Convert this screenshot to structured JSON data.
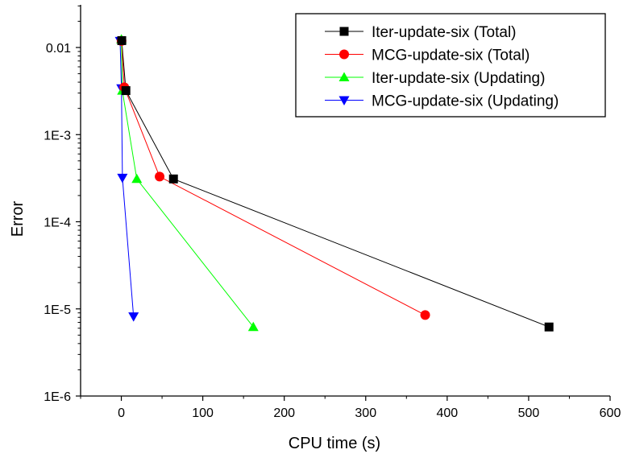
{
  "chart_data": {
    "type": "line",
    "title": "",
    "xlabel": "CPU time (s)",
    "ylabel": "Error",
    "xlim": [
      -50,
      600
    ],
    "ylim": [
      1e-06,
      0.04
    ],
    "yscale": "log",
    "grid": false,
    "legend_position": "top-right",
    "x_ticks": [
      {
        "value": 0,
        "label": "0"
      },
      {
        "value": 100,
        "label": "100"
      },
      {
        "value": 200,
        "label": "200"
      },
      {
        "value": 300,
        "label": "300"
      },
      {
        "value": 400,
        "label": "400"
      },
      {
        "value": 500,
        "label": "500"
      },
      {
        "value": 600,
        "label": "600"
      }
    ],
    "y_ticks": [
      {
        "value": 0.01,
        "label": "0.01"
      },
      {
        "value": 0.001,
        "label": "1E-3"
      },
      {
        "value": 0.0001,
        "label": "1E-4"
      },
      {
        "value": 1e-05,
        "label": "1E-5"
      },
      {
        "value": 1e-06,
        "label": "1E-6"
      }
    ],
    "series": [
      {
        "name": "Iter-update-six (Total)",
        "color": "#000000",
        "marker": "square",
        "points": [
          [
            0.5,
            0.012
          ],
          [
            5.6,
            0.0032
          ],
          [
            64,
            0.00031
          ],
          [
            525,
            6.2e-06
          ]
        ]
      },
      {
        "name": "MCG-update-six (Total)",
        "color": "#ff0000",
        "marker": "circle",
        "points": [
          [
            0.3,
            0.0119
          ],
          [
            3.6,
            0.0035
          ],
          [
            47,
            0.00033
          ],
          [
            373,
            8.5e-06
          ]
        ]
      },
      {
        "name": "Iter-update-six (Updating)",
        "color": "#00ff00",
        "marker": "triangle-up",
        "points": [
          [
            0.1,
            0.0124
          ],
          [
            1.2,
            0.0032
          ],
          [
            19,
            0.00031
          ],
          [
            162,
            6.2e-06
          ]
        ]
      },
      {
        "name": "MCG-update-six (Updating)",
        "color": "#0000ff",
        "marker": "triangle-down",
        "points": [
          [
            -1.5,
            0.0119
          ],
          [
            0.2,
            0.0034
          ],
          [
            1.3,
            0.00032
          ],
          [
            15,
            8.2e-06
          ]
        ]
      }
    ]
  }
}
